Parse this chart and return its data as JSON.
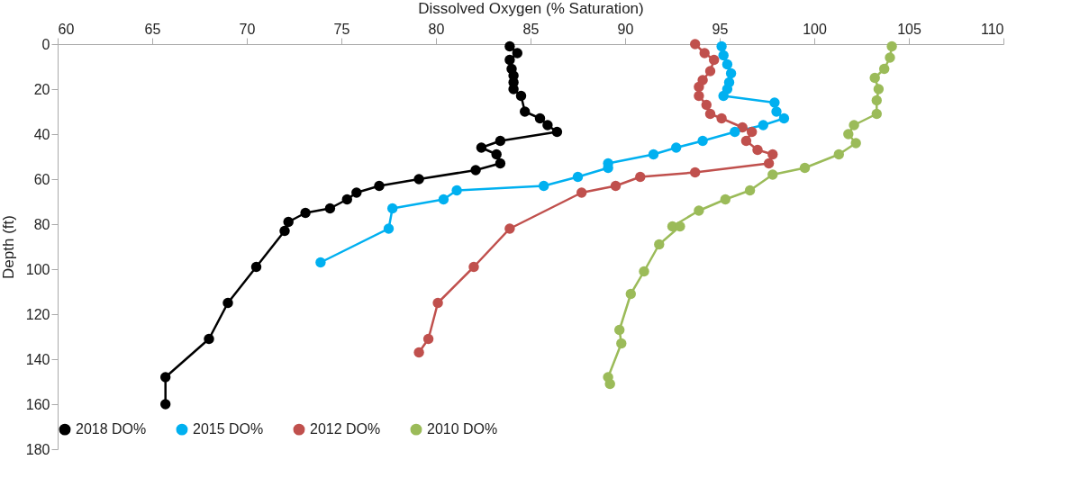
{
  "chart_data": {
    "type": "line",
    "xlabel": "Dissolved Oxygen (% Saturation)",
    "ylabel": "Depth (ft)",
    "xlim": [
      60,
      110
    ],
    "xticks": [
      60,
      65,
      70,
      75,
      80,
      85,
      90,
      95,
      100,
      105,
      110
    ],
    "ylim": [
      180,
      0
    ],
    "yticks": [
      0,
      20,
      40,
      60,
      80,
      100,
      120,
      140,
      160,
      180
    ],
    "grid": false,
    "legend": "bottom",
    "marker": "circle",
    "series": [
      {
        "name": "2018 DO%",
        "color": "#000000",
        "x": [
          83.9,
          84.3,
          83.9,
          84.0,
          84.1,
          84.1,
          84.1,
          84.5,
          84.7,
          85.5,
          85.9,
          86.4,
          83.4,
          82.4,
          83.2,
          83.4,
          82.1,
          79.1,
          77.0,
          75.8,
          75.3,
          74.4,
          73.1,
          72.2,
          72.0,
          70.5,
          69.0,
          68.0,
          65.7,
          65.7
        ],
        "values": [
          1,
          4,
          7,
          11,
          14,
          17,
          20,
          23,
          30,
          33,
          36,
          39,
          43,
          46,
          49,
          53,
          56,
          60,
          63,
          66,
          69,
          73,
          75,
          79,
          83,
          99,
          115,
          131,
          148,
          160
        ]
      },
      {
        "name": "2015 DO%",
        "color": "#00b0f0",
        "x": [
          95.1,
          95.2,
          95.4,
          95.6,
          95.5,
          95.4,
          95.2,
          97.9,
          98.0,
          98.4,
          97.3,
          95.8,
          94.1,
          92.7,
          91.5,
          89.1,
          89.1,
          87.5,
          85.7,
          81.1,
          80.4,
          77.7,
          77.5,
          73.9
        ],
        "values": [
          1,
          5,
          9,
          13,
          17,
          20,
          23,
          26,
          30,
          33,
          36,
          39,
          43,
          46,
          49,
          53,
          55,
          59,
          63,
          65,
          69,
          73,
          82,
          97
        ]
      },
      {
        "name": "2012 DO%",
        "color": "#c0504d",
        "x": [
          93.7,
          94.2,
          94.7,
          94.5,
          94.1,
          93.9,
          93.9,
          94.3,
          94.5,
          95.1,
          96.2,
          96.7,
          96.4,
          97.0,
          97.8,
          97.6,
          93.7,
          90.8,
          89.5,
          87.7,
          83.9,
          82.0,
          80.1,
          79.6,
          79.1
        ],
        "values": [
          0,
          4,
          7,
          12,
          16,
          19,
          23,
          27,
          31,
          33,
          37,
          39,
          43,
          47,
          49,
          53,
          57,
          59,
          63,
          66,
          82,
          99,
          115,
          131,
          137
        ]
      },
      {
        "name": "2010 DO%",
        "color": "#9bbb59",
        "x": [
          104.1,
          104.0,
          103.7,
          103.2,
          103.4,
          103.3,
          103.3,
          102.1,
          101.8,
          102.2,
          101.3,
          99.5,
          97.8,
          96.6,
          95.3,
          93.9,
          92.5,
          92.9,
          91.8,
          91.0,
          90.3,
          89.7,
          89.8,
          89.1,
          89.2
        ],
        "values": [
          1,
          6,
          11,
          15,
          20,
          25,
          31,
          36,
          40,
          44,
          49,
          55,
          58,
          65,
          69,
          74,
          81,
          81,
          89,
          101,
          111,
          127,
          133,
          148,
          151
        ]
      }
    ]
  }
}
